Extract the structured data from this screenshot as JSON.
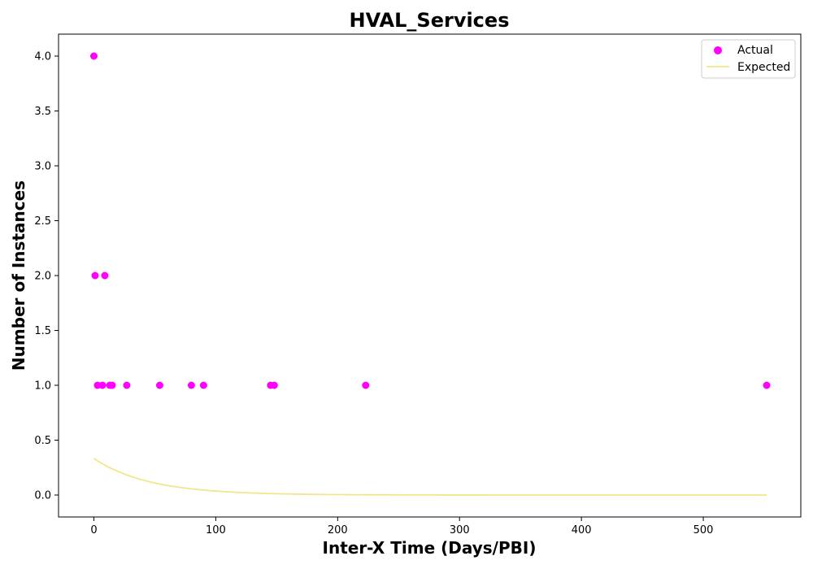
{
  "chart_data": {
    "type": "scatter",
    "title": "HVAL_Services",
    "xlabel": "Inter-X Time (Days/PBI)",
    "ylabel": "Number of Instances",
    "xlim": [
      -29,
      580
    ],
    "ylim": [
      -0.2,
      4.2
    ],
    "xticks": [
      0,
      100,
      200,
      300,
      400,
      500
    ],
    "yticks": [
      0.0,
      0.5,
      1.0,
      1.5,
      2.0,
      2.5,
      3.0,
      3.5,
      4.0
    ],
    "grid": false,
    "legend_position": "top-right",
    "series": [
      {
        "name": "Actual",
        "kind": "scatter",
        "color": "#ff00ff",
        "points": [
          {
            "x": 0,
            "y": 4
          },
          {
            "x": 1,
            "y": 2
          },
          {
            "x": 9,
            "y": 2
          },
          {
            "x": 3,
            "y": 1
          },
          {
            "x": 7,
            "y": 1
          },
          {
            "x": 13,
            "y": 1
          },
          {
            "x": 15,
            "y": 1
          },
          {
            "x": 27,
            "y": 1
          },
          {
            "x": 54,
            "y": 1
          },
          {
            "x": 80,
            "y": 1
          },
          {
            "x": 90,
            "y": 1
          },
          {
            "x": 145,
            "y": 1
          },
          {
            "x": 148,
            "y": 1
          },
          {
            "x": 223,
            "y": 1
          },
          {
            "x": 552,
            "y": 1
          }
        ]
      },
      {
        "name": "Expected",
        "kind": "line",
        "color": "#f0e68c",
        "model": {
          "amplitude": 0.333,
          "decay_rate": 0.0222,
          "x_start": 0,
          "x_end": 552
        }
      }
    ]
  }
}
